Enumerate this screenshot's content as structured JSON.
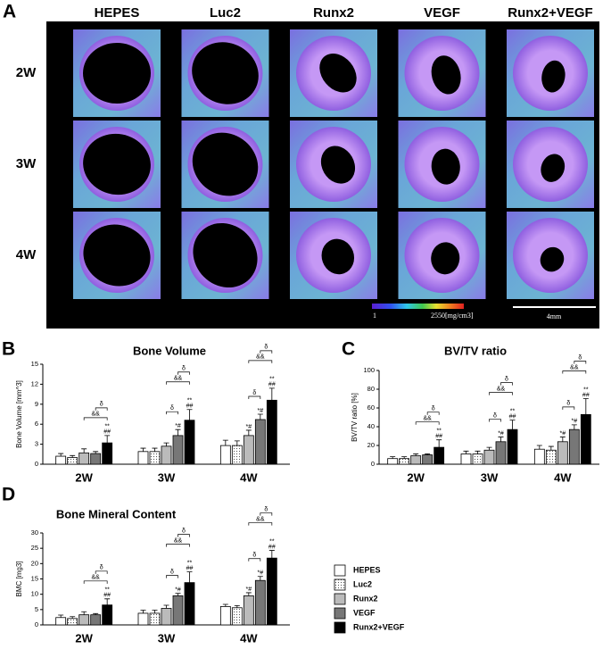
{
  "panel_a": {
    "label": "A",
    "columns": [
      "HEPES",
      "Luc2",
      "Runx2",
      "VEGF",
      "Runx2+VEGF"
    ],
    "rows": [
      "2W",
      "3W",
      "4W"
    ],
    "colorbar_min": "1",
    "colorbar_max": "2550[mg/cm3]",
    "scalebar": "4mm"
  },
  "chart_data": [
    {
      "type": "bar",
      "label": "B",
      "title": "Bone Volume",
      "y_label": "Bone Volume [mm^3]",
      "categories": [
        "2W",
        "3W",
        "4W"
      ],
      "ylim": [
        0,
        15
      ],
      "yticks": [
        0,
        3,
        6,
        9,
        12,
        15
      ],
      "series": [
        {
          "color": "#ffffff",
          "values": [
            1.2,
            1.9,
            2.8
          ],
          "errors": [
            0.4,
            0.5,
            0.8
          ]
        },
        {
          "color": "#ffffff",
          "hatch": "dots",
          "values": [
            1.0,
            1.9,
            2.8
          ],
          "errors": [
            0.3,
            0.5,
            0.7
          ]
        },
        {
          "color": "#bbbbbb",
          "values": [
            1.7,
            2.7,
            4.3
          ],
          "errors": [
            0.6,
            0.5,
            0.8
          ],
          "significance": [
            null,
            null,
            [
              "*#"
            ]
          ]
        },
        {
          "color": "#777777",
          "values": [
            1.6,
            4.3,
            6.7
          ],
          "errors": [
            0.3,
            0.9,
            0.8
          ],
          "significance": [
            null,
            [
              "*#"
            ],
            [
              "*#"
            ]
          ]
        },
        {
          "color": "#000000",
          "values": [
            3.2,
            6.6,
            9.6
          ],
          "errors": [
            1.1,
            1.6,
            1.8
          ],
          "significance": [
            [
              "**",
              "##"
            ],
            [
              "**",
              "##"
            ],
            [
              "**",
              "##"
            ]
          ]
        }
      ],
      "brackets": [
        [
          {
            "from": 2,
            "to": 4,
            "label": "&&"
          },
          {
            "from": 3,
            "to": 4,
            "label": "δ"
          }
        ],
        [
          {
            "from": 2,
            "to": 3,
            "label": "δ"
          },
          {
            "from": 2,
            "to": 4,
            "label": "&&"
          },
          {
            "from": 3,
            "to": 4,
            "label": "δ"
          }
        ],
        [
          {
            "from": 2,
            "to": 3,
            "label": "δ"
          },
          {
            "from": 2,
            "to": 4,
            "label": "&&"
          },
          {
            "from": 3,
            "to": 4,
            "label": "δ"
          }
        ]
      ]
    },
    {
      "type": "bar",
      "label": "C",
      "title": "BV/TV ratio",
      "y_label": "BV/TV ratio [%]",
      "categories": [
        "2W",
        "3W",
        "4W"
      ],
      "ylim": [
        0,
        100
      ],
      "yticks": [
        0,
        20,
        40,
        60,
        80,
        100
      ],
      "series": [
        {
          "color": "#ffffff",
          "values": [
            6,
            11,
            16
          ],
          "errors": [
            2,
            3,
            4
          ]
        },
        {
          "color": "#ffffff",
          "hatch": "dots",
          "values": [
            6,
            11,
            15
          ],
          "errors": [
            2,
            3,
            4
          ]
        },
        {
          "color": "#bbbbbb",
          "values": [
            9,
            15,
            24
          ],
          "errors": [
            2,
            3,
            5
          ],
          "significance": [
            null,
            null,
            [
              "*#"
            ]
          ]
        },
        {
          "color": "#777777",
          "values": [
            10,
            24,
            37
          ],
          "errors": [
            1,
            5,
            5
          ],
          "significance": [
            null,
            [
              "*#"
            ],
            [
              "*#"
            ]
          ]
        },
        {
          "color": "#000000",
          "values": [
            18,
            37,
            53
          ],
          "errors": [
            8,
            10,
            17
          ],
          "significance": [
            [
              "**",
              "##"
            ],
            [
              "**",
              "##"
            ],
            [
              "**",
              "##"
            ]
          ]
        }
      ],
      "brackets": [
        [
          {
            "from": 2,
            "to": 4,
            "label": "&&"
          },
          {
            "from": 3,
            "to": 4,
            "label": "δ"
          }
        ],
        [
          {
            "from": 2,
            "to": 3,
            "label": "δ"
          },
          {
            "from": 2,
            "to": 4,
            "label": "&&"
          },
          {
            "from": 3,
            "to": 4,
            "label": "δ"
          }
        ],
        [
          {
            "from": 2,
            "to": 3,
            "label": "δ"
          },
          {
            "from": 2,
            "to": 4,
            "label": "&&"
          },
          {
            "from": 3,
            "to": 4,
            "label": "δ"
          }
        ]
      ]
    },
    {
      "type": "bar",
      "label": "D",
      "title": "Bone Mineral Content",
      "y_label": "BMC [mg3]",
      "categories": [
        "2W",
        "3W",
        "4W"
      ],
      "ylim": [
        0,
        30
      ],
      "yticks": [
        0,
        5,
        10,
        15,
        20,
        25,
        30
      ],
      "legend": "right",
      "series": [
        {
          "name": "HEPES",
          "color": "#ffffff",
          "values": [
            2.4,
            3.8,
            6.0
          ],
          "errors": [
            0.8,
            1.0,
            0.7
          ]
        },
        {
          "name": "Luc2",
          "color": "#ffffff",
          "hatch": "dots",
          "values": [
            2.1,
            3.8,
            5.6
          ],
          "errors": [
            0.6,
            1.0,
            0.7
          ]
        },
        {
          "name": "Runx2",
          "color": "#bbbbbb",
          "values": [
            3.3,
            5.4,
            9.5
          ],
          "errors": [
            1.0,
            1.0,
            1.0
          ],
          "significance": [
            null,
            null,
            [
              "*#"
            ]
          ]
        },
        {
          "name": "VEGF",
          "color": "#777777",
          "values": [
            3.3,
            9.5,
            14.5
          ],
          "errors": [
            0.4,
            0.8,
            1.3
          ],
          "significance": [
            null,
            [
              "*#"
            ],
            [
              "*#"
            ]
          ]
        },
        {
          "name": "Runx2+VEGF",
          "color": "#000000",
          "values": [
            6.5,
            13.8,
            21.8
          ],
          "errors": [
            2.0,
            3.5,
            2.5
          ],
          "significance": [
            [
              "**",
              "##"
            ],
            [
              "**",
              "##"
            ],
            [
              "**",
              "##"
            ]
          ]
        }
      ],
      "brackets": [
        [
          {
            "from": 2,
            "to": 4,
            "label": "&&"
          },
          {
            "from": 3,
            "to": 4,
            "label": "δ"
          }
        ],
        [
          {
            "from": 2,
            "to": 3,
            "label": "δ"
          },
          {
            "from": 2,
            "to": 4,
            "label": "&&"
          },
          {
            "from": 3,
            "to": 4,
            "label": "δ"
          }
        ],
        [
          {
            "from": 2,
            "to": 3,
            "label": "δ"
          },
          {
            "from": 2,
            "to": 4,
            "label": "&&"
          },
          {
            "from": 3,
            "to": 4,
            "label": "δ"
          }
        ]
      ]
    }
  ]
}
